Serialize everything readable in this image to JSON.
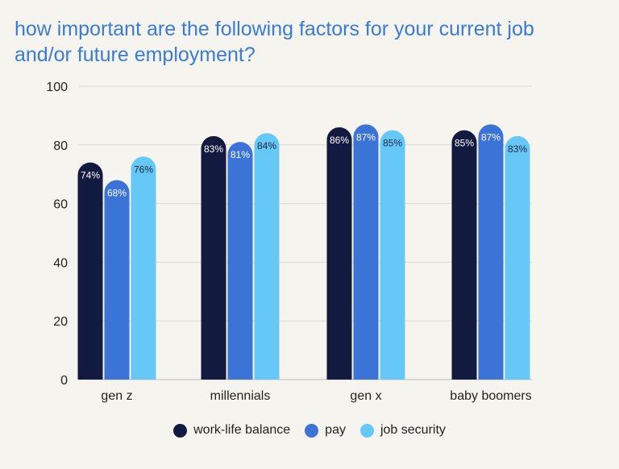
{
  "chart_data": {
    "type": "bar",
    "title": "how important are the following factors for your current job and/or future employment?",
    "categories": [
      "gen z",
      "millennials",
      "gen x",
      "baby boomers"
    ],
    "series": [
      {
        "name": "work-life balance",
        "color": "#131a3f",
        "label_color": "#ffffff",
        "values": [
          74,
          83,
          86,
          85
        ]
      },
      {
        "name": "pay",
        "color": "#3b73d6",
        "label_color": "#ffffff",
        "values": [
          68,
          81,
          87,
          87
        ]
      },
      {
        "name": "job security",
        "color": "#66c8f7",
        "label_color": "#1c2340",
        "values": [
          76,
          84,
          85,
          83
        ]
      }
    ],
    "value_suffix": "%",
    "ylim": [
      0,
      100
    ],
    "yticks": [
      0,
      20,
      40,
      60,
      80,
      100
    ],
    "grid": true,
    "legend_position": "bottom"
  }
}
